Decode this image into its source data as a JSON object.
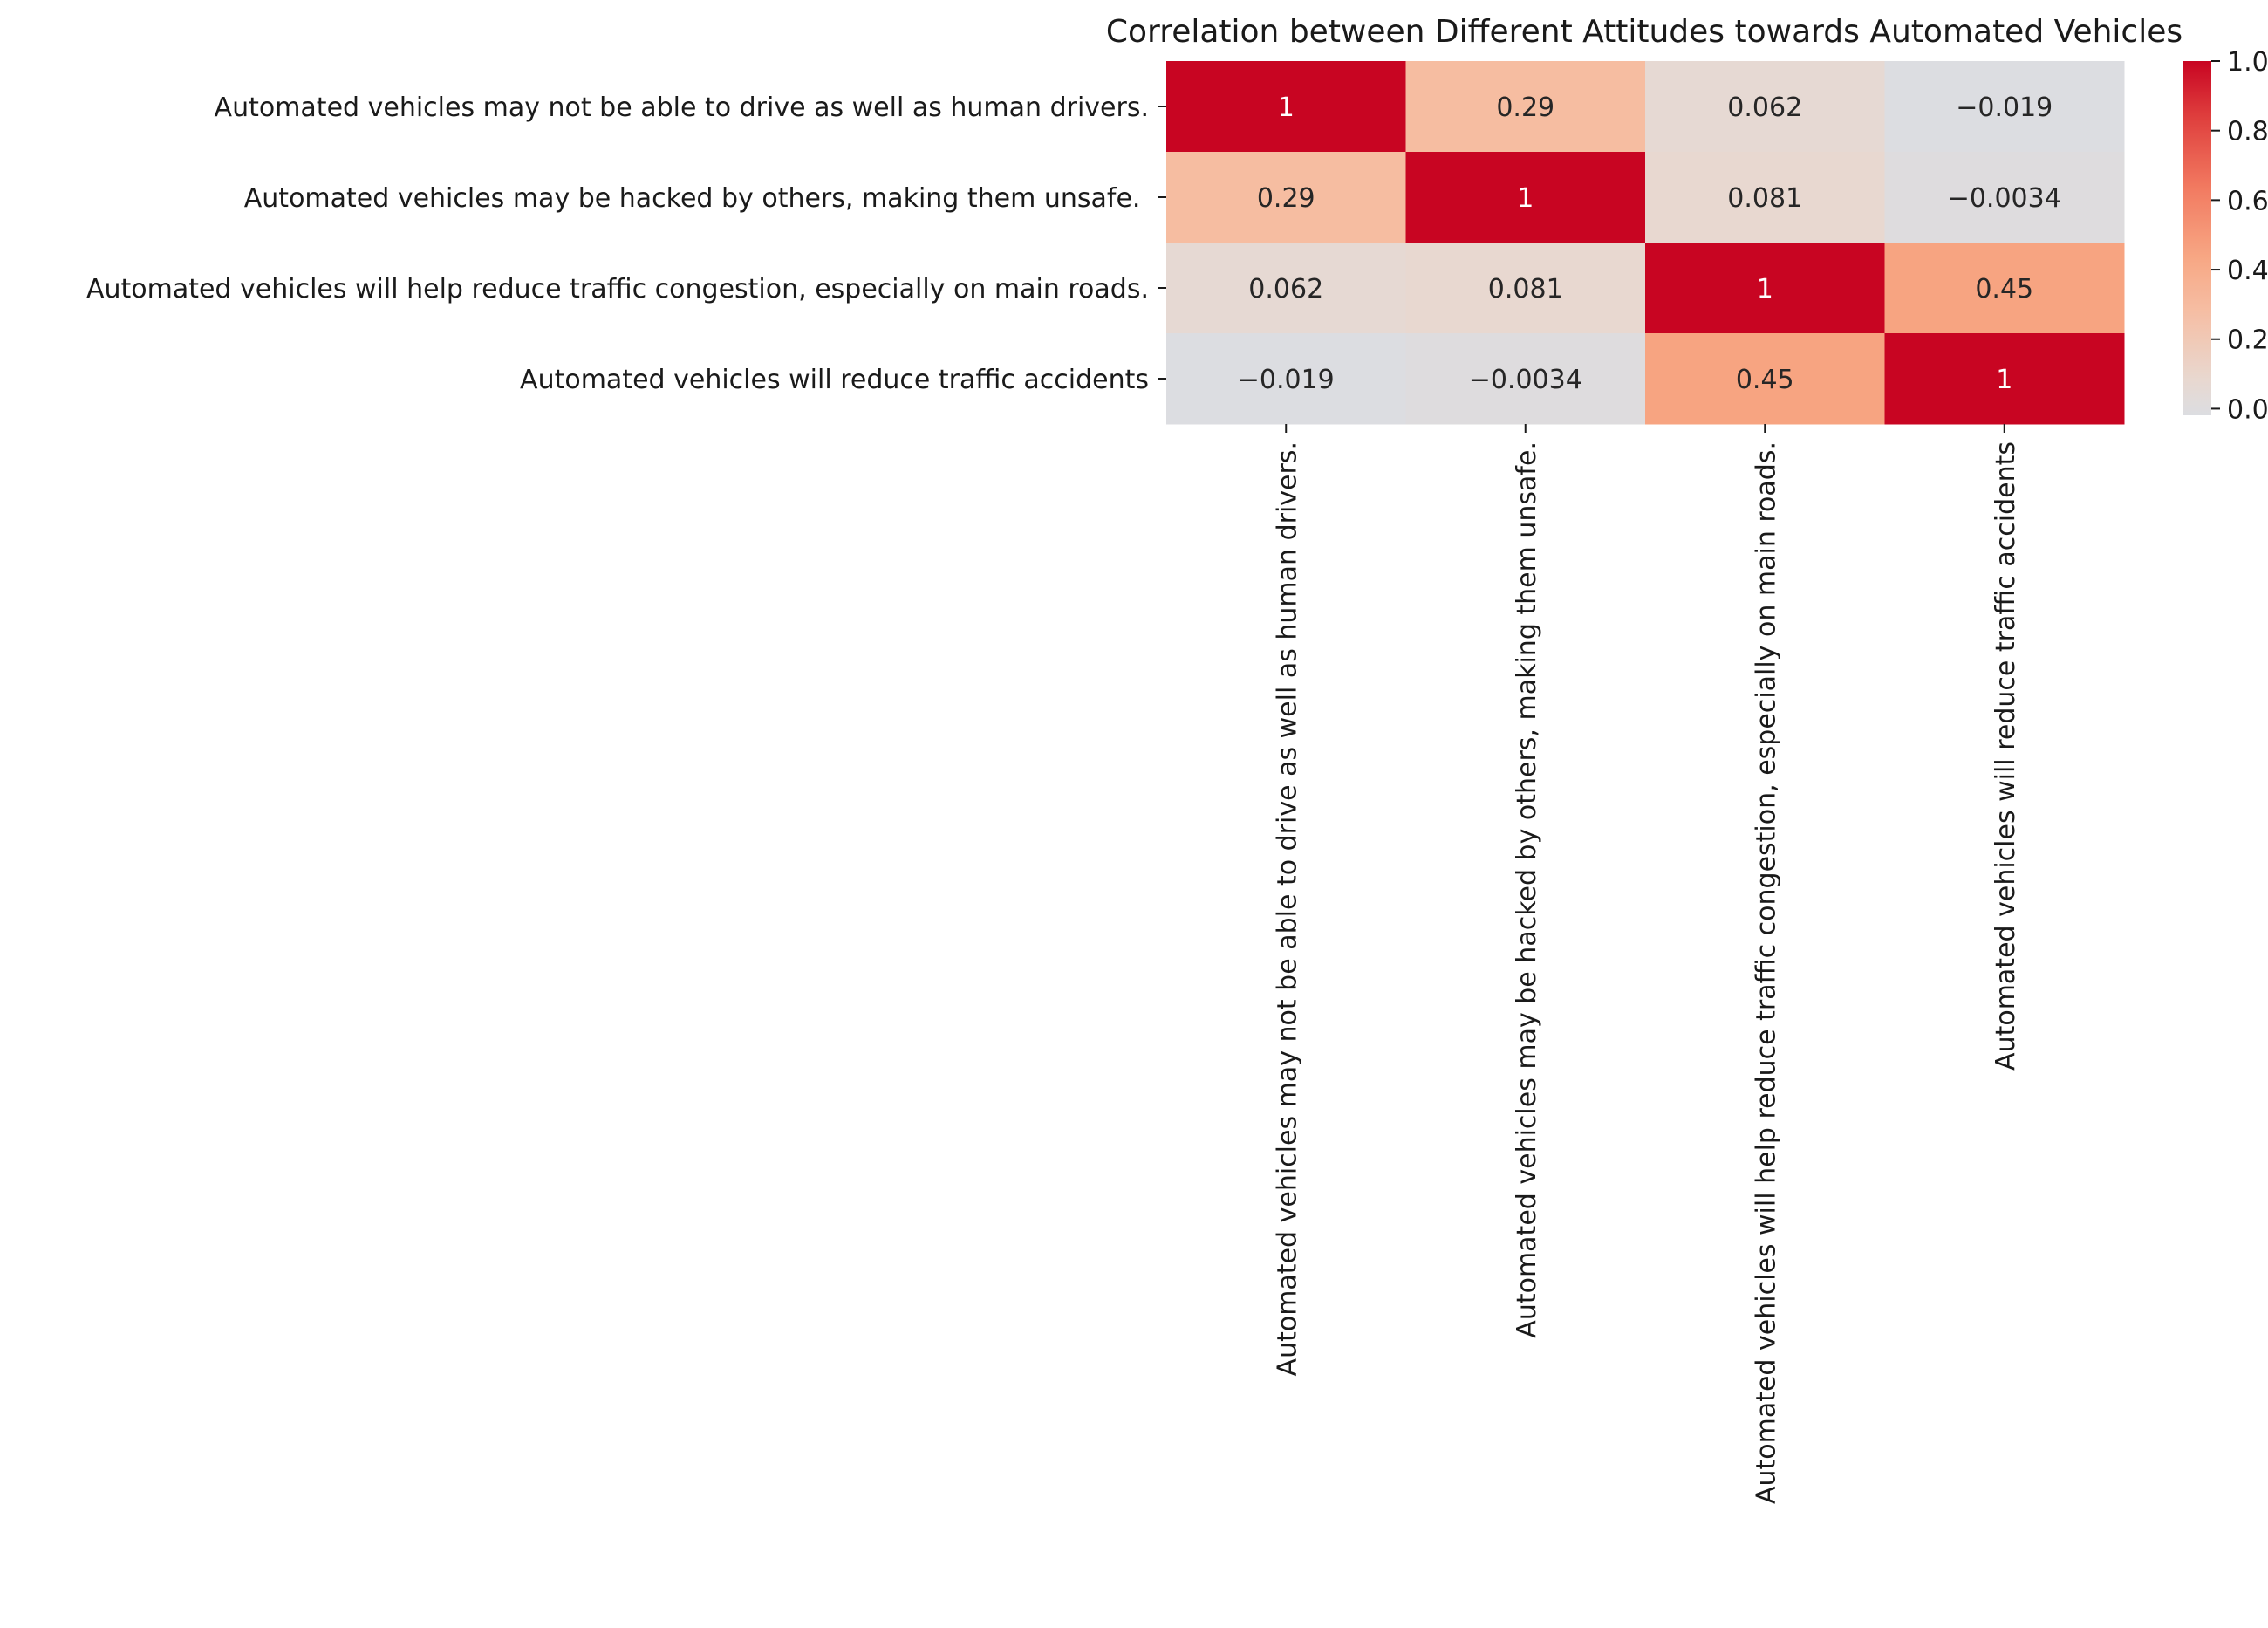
{
  "chart_data": {
    "type": "heatmap",
    "title": "Correlation between Different Attitudes towards Automated Vehicles",
    "row_labels": [
      "Automated vehicles may not be able to drive as well as human drivers.",
      "Automated vehicles may be hacked by others, making them unsafe. ",
      "Automated vehicles will help reduce traffic congestion, especially on main roads.",
      "Automated vehicles will reduce traffic accidents"
    ],
    "col_labels": [
      "Automated vehicles may not be able to drive as well as human drivers.",
      "Automated vehicles may be hacked by others, making them unsafe.",
      "Automated vehicles will help reduce traffic congestion, especially on main roads.",
      "Automated vehicles will reduce traffic accidents"
    ],
    "values": [
      [
        1,
        0.29,
        0.062,
        -0.019
      ],
      [
        0.29,
        1,
        0.081,
        -0.0034
      ],
      [
        0.062,
        0.081,
        1,
        0.45
      ],
      [
        -0.019,
        -0.0034,
        0.45,
        1
      ]
    ],
    "annotations": [
      [
        "1",
        "0.29",
        "0.062",
        "−0.019"
      ],
      [
        "0.29",
        "1",
        "0.081",
        "−0.0034"
      ],
      [
        "0.062",
        "0.081",
        "1",
        "0.45"
      ],
      [
        "−0.019",
        "−0.0034",
        "0.45",
        "1"
      ]
    ],
    "colorscale": "coolwarm (light grey to red)",
    "colorbar": {
      "range": [
        -0.019,
        1.0
      ],
      "ticks": [
        0.0,
        0.2,
        0.4,
        0.6,
        0.8,
        1.0
      ],
      "tick_labels": [
        "0.0",
        "0.2",
        "0.4",
        "0.6",
        "0.8",
        "1.0"
      ]
    },
    "colors": {
      "low": "#dcdde1",
      "high": "#c80522",
      "text_dark": "#262626",
      "text_light": "#ffffff"
    }
  }
}
